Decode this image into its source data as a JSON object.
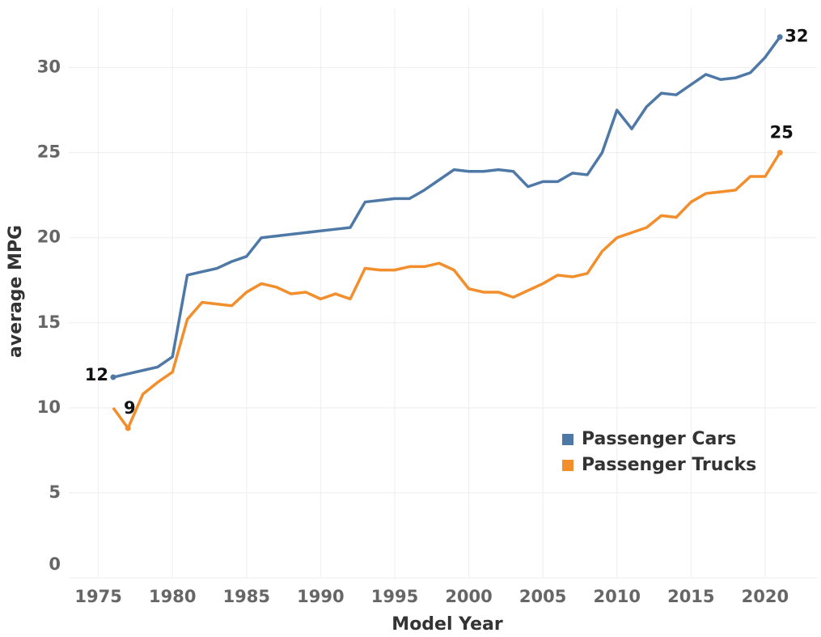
{
  "chart_data": {
    "type": "line",
    "x_label": "Model Year",
    "y_label": "average MPG",
    "x": [
      1976,
      1977,
      1978,
      1979,
      1980,
      1981,
      1982,
      1983,
      1984,
      1985,
      1986,
      1987,
      1988,
      1989,
      1990,
      1991,
      1992,
      1993,
      1994,
      1995,
      1996,
      1997,
      1998,
      1999,
      2000,
      2001,
      2002,
      2003,
      2004,
      2005,
      2006,
      2007,
      2008,
      2009,
      2010,
      2011,
      2012,
      2013,
      2014,
      2015,
      2016,
      2017,
      2018,
      2019,
      2020,
      2021
    ],
    "series": [
      {
        "name": "Passenger Cars",
        "color": "#4e79a7",
        "values": [
          11.8,
          12.0,
          12.2,
          12.4,
          13.0,
          17.8,
          18.0,
          18.2,
          18.6,
          18.9,
          20.0,
          20.1,
          20.2,
          20.3,
          20.4,
          20.5,
          20.6,
          22.1,
          22.2,
          22.3,
          22.3,
          22.8,
          23.4,
          24.0,
          23.9,
          23.9,
          24.0,
          23.9,
          23.0,
          23.3,
          23.3,
          23.8,
          23.7,
          25.0,
          27.5,
          26.4,
          27.7,
          28.5,
          28.4,
          29.0,
          29.6,
          29.3,
          29.4,
          29.7,
          30.6,
          31.8
        ],
        "value_labels": [
          "12",
          null,
          null,
          null,
          null,
          null,
          null,
          null,
          null,
          null,
          null,
          null,
          null,
          null,
          null,
          null,
          null,
          null,
          null,
          null,
          null,
          null,
          null,
          null,
          null,
          null,
          null,
          null,
          null,
          null,
          null,
          null,
          null,
          null,
          null,
          null,
          null,
          null,
          null,
          null,
          null,
          null,
          null,
          null,
          null,
          "32"
        ]
      },
      {
        "name": "Passenger Trucks",
        "color": "#f28e2b",
        "values": [
          10.0,
          8.8,
          10.8,
          11.5,
          12.1,
          15.2,
          16.2,
          16.1,
          16.0,
          16.8,
          17.3,
          17.1,
          16.7,
          16.8,
          16.4,
          16.7,
          16.4,
          18.2,
          18.1,
          18.1,
          18.3,
          18.3,
          18.5,
          18.1,
          17.0,
          16.8,
          16.8,
          16.5,
          16.9,
          17.3,
          17.8,
          17.7,
          17.9,
          19.2,
          20.0,
          20.3,
          20.6,
          21.3,
          21.2,
          22.1,
          22.6,
          22.7,
          22.8,
          23.6,
          23.6,
          25.0
        ],
        "value_labels": [
          null,
          "9",
          null,
          null,
          null,
          null,
          null,
          null,
          null,
          null,
          null,
          null,
          null,
          null,
          null,
          null,
          null,
          null,
          null,
          null,
          null,
          null,
          null,
          null,
          null,
          null,
          null,
          null,
          null,
          null,
          null,
          null,
          null,
          null,
          null,
          null,
          null,
          null,
          null,
          null,
          null,
          null,
          null,
          null,
          null,
          "25"
        ]
      }
    ],
    "xlim": [
      1973,
      2023.5
    ],
    "xticks": [
      1975,
      1980,
      1985,
      1990,
      1995,
      2000,
      2005,
      2010,
      2015,
      2020
    ],
    "ylim": [
      0,
      33.5
    ],
    "yticks": [
      0,
      5,
      10,
      15,
      20,
      25,
      30
    ],
    "grid": true,
    "legend": "lower right"
  }
}
